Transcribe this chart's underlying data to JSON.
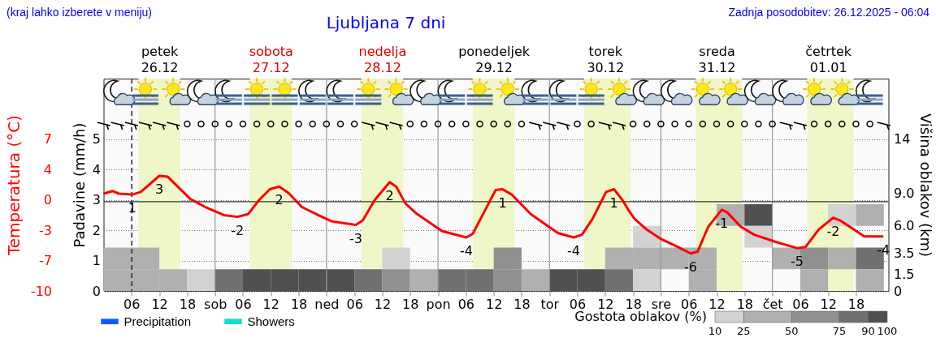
{
  "chart_data": {
    "type": "line",
    "title": "Ljubljana 7 dni",
    "annotations": [
      "(kraj lahko izberete v meniju)",
      "Zadnja posodobitev: 26.12.2025 - 06:04",
      {
        "text": "1",
        "x": "2025-12-26T06:12",
        "y": 0.8
      },
      {
        "text": "3",
        "x": "2025-12-26T12:00",
        "y": 2.9
      },
      {
        "text": "-2",
        "x": "2025-12-27T04:48",
        "y": -1.7
      },
      {
        "text": "2",
        "x": "2025-12-27T13:48",
        "y": 1.7
      },
      {
        "text": "-3",
        "x": "2025-12-28T06:18",
        "y": -2.6
      },
      {
        "text": "2",
        "x": "2025-12-28T13:36",
        "y": 2.2
      },
      {
        "text": "-4",
        "x": "2025-12-29T06:06",
        "y": -4.0
      },
      {
        "text": "1",
        "x": "2025-12-29T13:54",
        "y": 1.4
      },
      {
        "text": "-4",
        "x": "2025-12-30T05:12",
        "y": -4.0
      },
      {
        "text": "1",
        "x": "2025-12-30T13:54",
        "y": 1.4
      },
      {
        "text": "-6",
        "x": "2025-12-31T06:24",
        "y": -5.8
      },
      {
        "text": "-1",
        "x": "2025-12-31T13:06",
        "y": -0.9
      },
      {
        "text": "-5",
        "x": "2026-01-01T05:18",
        "y": -5.2
      },
      {
        "text": "-2",
        "x": "2026-01-01T13:06",
        "y": -1.8
      },
      {
        "text": "-4",
        "x": "2026-01-01T23:54",
        "y": -3.9
      }
    ],
    "ylabel": "Temperatura (°C)",
    "y2label": "Padavine (mm/h)",
    "y3label": "Višina oblakov (km)",
    "clabel": "Gostota oblakov (%)",
    "xlim": [
      "2025-12-26T00:00",
      "2026-01-02T01:00"
    ],
    "xticks": [
      {
        "value": "2025-12-26T06:00",
        "label": "06"
      },
      {
        "value": "2025-12-26T12:00",
        "label": "12"
      },
      {
        "value": "2025-12-26T18:00",
        "label": "18"
      },
      {
        "value": "2025-12-27T00:00",
        "label": "sob"
      },
      {
        "value": "2025-12-27T06:00",
        "label": "06"
      },
      {
        "value": "2025-12-27T12:00",
        "label": "12"
      },
      {
        "value": "2025-12-27T18:00",
        "label": "18"
      },
      {
        "value": "2025-12-28T00:00",
        "label": "ned"
      },
      {
        "value": "2025-12-28T06:00",
        "label": "06"
      },
      {
        "value": "2025-12-28T12:00",
        "label": "12"
      },
      {
        "value": "2025-12-28T18:00",
        "label": "18"
      },
      {
        "value": "2025-12-29T00:00",
        "label": "pon"
      },
      {
        "value": "2025-12-29T06:00",
        "label": "06"
      },
      {
        "value": "2025-12-29T12:00",
        "label": "12"
      },
      {
        "value": "2025-12-29T18:00",
        "label": "18"
      },
      {
        "value": "2025-12-30T00:00",
        "label": "tor"
      },
      {
        "value": "2025-12-30T06:00",
        "label": "06"
      },
      {
        "value": "2025-12-30T12:00",
        "label": "12"
      },
      {
        "value": "2025-12-30T18:00",
        "label": "18"
      },
      {
        "value": "2025-12-31T00:00",
        "label": "sre"
      },
      {
        "value": "2025-12-31T06:00",
        "label": "06"
      },
      {
        "value": "2025-12-31T12:00",
        "label": "12"
      },
      {
        "value": "2025-12-31T18:00",
        "label": "18"
      },
      {
        "value": "2026-01-01T00:00",
        "label": "čet"
      },
      {
        "value": "2026-01-01T06:00",
        "label": "06"
      },
      {
        "value": "2026-01-01T12:00",
        "label": "12"
      },
      {
        "value": "2026-01-01T18:00",
        "label": "18"
      }
    ],
    "x2lim": [
      "2025-12-26T00:00",
      "2026-01-02T01:00"
    ],
    "x2ticks": [
      {
        "value": "2025-12-26T12:00",
        "label": "petek\n26.12"
      },
      {
        "value": "2025-12-27T12:00",
        "label": "sobota\n27.12"
      },
      {
        "value": "2025-12-28T12:00",
        "label": "nedelja\n28.12"
      },
      {
        "value": "2025-12-29T12:00",
        "label": "ponedeljek\n29.12"
      },
      {
        "value": "2025-12-30T12:00",
        "label": "torek\n30.12"
      },
      {
        "value": "2025-12-31T12:00",
        "label": "sreda\n31.12"
      },
      {
        "value": "2026-01-01T12:00",
        "label": "četrtek\n01.01"
      }
    ],
    "ylim": [
      -10,
      13.8
    ],
    "yticks": [
      {
        "value": -10,
        "label": "-10"
      },
      {
        "value": -6.6,
        "label": "-7"
      },
      {
        "value": -3.2,
        "label": "-3"
      },
      {
        "value": 0.2,
        "label": "0"
      },
      {
        "value": 3.6,
        "label": "4"
      },
      {
        "value": 7,
        "label": "7"
      }
    ],
    "y2lim": [
      0,
      7
    ],
    "y2ticks": [
      0,
      1,
      2,
      3,
      4,
      5
    ],
    "y3lim": [
      0,
      19.6
    ],
    "y3ticks": [
      0,
      1.5,
      3.5,
      {
        "value": 6,
        "label": "6.0"
      },
      {
        "value": 9,
        "label": "9.0"
      },
      14
    ],
    "clim": [
      10,
      100
    ],
    "cticks": [
      10,
      25,
      50,
      75,
      90,
      100
    ],
    "grid": "y",
    "legend": "bottom left",
    "bands": [
      {
        "axis": "x",
        "from": "2025-12-26T07:30",
        "to": "2025-12-26T16:30",
        "color": "#eff6c8"
      },
      {
        "axis": "x",
        "from": "2025-12-27T07:30",
        "to": "2025-12-27T16:30",
        "color": "#eff6c8"
      },
      {
        "axis": "x",
        "from": "2025-12-28T07:30",
        "to": "2025-12-28T16:30",
        "color": "#eff6c8"
      },
      {
        "axis": "x",
        "from": "2025-12-29T07:30",
        "to": "2025-12-29T16:30",
        "color": "#eff6c8"
      },
      {
        "axis": "x",
        "from": "2025-12-30T07:30",
        "to": "2025-12-30T17:30",
        "color": "#eff6c8"
      },
      {
        "axis": "x",
        "from": "2025-12-31T07:30",
        "to": "2025-12-31T17:30",
        "color": "#eff6c8"
      },
      {
        "axis": "x",
        "from": "2026-01-01T07:30",
        "to": "2026-01-01T17:30",
        "color": "#eff6c8"
      }
    ],
    "ref_lines": [
      {
        "axis": "x",
        "value": "2025-12-27T00:00",
        "color": "#999999"
      },
      {
        "axis": "x",
        "value": "2025-12-28T00:00",
        "color": "#999999"
      },
      {
        "axis": "x",
        "value": "2025-12-29T00:00",
        "color": "#999999"
      },
      {
        "axis": "x",
        "value": "2025-12-30T00:00",
        "color": "#999999"
      },
      {
        "axis": "x",
        "value": "2025-12-31T00:00",
        "color": "#999999"
      },
      {
        "axis": "x",
        "value": "2026-01-01T00:00",
        "color": "#999999"
      },
      {
        "axis": "x",
        "value": "2025-12-26T06:04",
        "color": "#333333",
        "line_style": "dashed"
      },
      {
        "axis": "y",
        "value": 0,
        "color": "#333333"
      }
    ],
    "series": [
      {
        "type": "scatter",
        "axis": "y3",
        "marker": "square",
        "x": [
          "2025-12-31T15:00",
          "2025-12-31T21:00",
          "2026-01-01T15:00",
          "2026-01-01T21:00",
          "2025-12-30T21:00",
          "2025-12-31T21:00",
          "2025-12-26T03:00",
          "2025-12-26T09:00",
          "2025-12-28T15:00",
          "2025-12-29T15:00",
          "2025-12-30T15:00",
          "2025-12-30T21:00",
          "2025-12-31T03:00",
          "2025-12-31T09:00",
          "2026-01-01T03:00",
          "2026-01-01T09:00",
          "2026-01-01T15:00",
          "2026-01-01T21:00",
          "2025-12-26T03:00",
          "2025-12-26T09:00",
          "2025-12-26T15:00",
          "2025-12-26T21:00",
          "2025-12-27T03:00",
          "2025-12-27T09:00",
          "2025-12-27T15:00",
          "2025-12-27T21:00",
          "2025-12-28T03:00",
          "2025-12-28T09:00",
          "2025-12-28T15:00",
          "2025-12-28T21:00",
          "2025-12-29T03:00",
          "2025-12-29T09:00",
          "2025-12-29T15:00",
          "2025-12-29T21:00",
          "2025-12-30T03:00",
          "2025-12-30T09:00",
          "2025-12-30T15:00",
          "2025-12-30T21:00",
          "2025-12-31T09:00",
          "2026-01-01T09:00",
          "2026-01-01T21:00"
        ],
        "values": [
          7,
          7,
          7,
          7,
          5,
          5,
          3,
          3,
          3,
          3,
          3,
          3,
          3,
          3,
          3,
          3,
          3,
          3,
          1,
          1,
          1,
          1,
          1,
          1,
          1,
          1,
          1,
          1,
          1,
          1,
          1,
          1,
          1,
          1,
          1,
          1,
          1,
          1,
          1,
          1,
          1
        ],
        "colors": [
          "#b0b0b0",
          "#505050",
          "#d2d2d2",
          "#b0b0b0",
          "#d2d2d2",
          "#d2d2d2",
          "#b0b0b0",
          "#b0b0b0",
          "#d2d2d2",
          "#909090",
          "#b0b0b0",
          "#b0b0b0",
          "#b0b0b0",
          "#b0b0b0",
          "#b0b0b0",
          "#909090",
          "#b0b0b0",
          "#707070",
          "#b0b0b0",
          "#b0b0b0",
          "#b0b0b0",
          "#d2d2d2",
          "#707070",
          "#505050",
          "#505050",
          "#505050",
          "#505050",
          "#707070",
          "#909090",
          "#b0b0b0",
          "#707070",
          "#707070",
          "#909090",
          "#b0b0b0",
          "#505050",
          "#505050",
          "#707070",
          "#d2d2d2",
          "#b0b0b0",
          "#b0b0b0",
          "#b0b0b0"
        ]
      },
      {
        "type": "bar",
        "axis": "y2",
        "name": "Precipitation",
        "color": "#0a5cff",
        "x": [
          "2025-12-26T03:00",
          "2025-12-26T09:00",
          "2025-12-26T15:00",
          "2025-12-26T21:00",
          "2025-12-27T03:00",
          "2025-12-27T09:00",
          "2025-12-27T15:00",
          "2025-12-27T21:00",
          "2025-12-28T03:00",
          "2025-12-28T09:00",
          "2025-12-28T15:00",
          "2025-12-28T21:00",
          "2025-12-29T03:00",
          "2025-12-29T09:00",
          "2025-12-29T15:00",
          "2025-12-29T21:00",
          "2025-12-30T03:00",
          "2025-12-30T09:00",
          "2025-12-30T15:00",
          "2025-12-30T21:00",
          "2025-12-31T03:00",
          "2025-12-31T09:00",
          "2025-12-31T15:00",
          "2025-12-31T21:00",
          "2026-01-01T03:00",
          "2026-01-01T09:00",
          "2026-01-01T15:00",
          "2026-01-01T21:00"
        ],
        "values": [
          0,
          0,
          0,
          0,
          0,
          0,
          0,
          0,
          0,
          0,
          0,
          0,
          0,
          0,
          0,
          0,
          0,
          0,
          0,
          0,
          0,
          0,
          0,
          0,
          0,
          0,
          0,
          0
        ]
      },
      {
        "type": "bar",
        "axis": "y2",
        "name": "Showers",
        "color": "#11dccc",
        "x": [
          "2025-12-26T03:00",
          "2025-12-26T09:00",
          "2025-12-26T15:00",
          "2025-12-26T21:00",
          "2025-12-27T03:00",
          "2025-12-27T09:00",
          "2025-12-27T15:00",
          "2025-12-27T21:00",
          "2025-12-28T03:00",
          "2025-12-28T09:00",
          "2025-12-28T15:00",
          "2025-12-28T21:00",
          "2025-12-29T03:00",
          "2025-12-29T09:00",
          "2025-12-29T15:00",
          "2025-12-29T21:00",
          "2025-12-30T03:00",
          "2025-12-30T09:00",
          "2025-12-30T15:00",
          "2025-12-30T21:00",
          "2025-12-31T03:00",
          "2025-12-31T09:00",
          "2025-12-31T15:00",
          "2025-12-31T21:00",
          "2026-01-01T03:00",
          "2026-01-01T09:00",
          "2026-01-01T15:00",
          "2026-01-01T21:00"
        ],
        "values": [
          0,
          0,
          0,
          0,
          0,
          0,
          0,
          0,
          0,
          0,
          0,
          0,
          0,
          0,
          0,
          0,
          0,
          0,
          0,
          0,
          0,
          0,
          0,
          0,
          0,
          0,
          0,
          0
        ]
      },
      {
        "color": "#ff0000",
        "x": [
          "2025-12-26T00:00",
          "2025-12-26T01:54",
          "2025-12-26T03:18",
          "2025-12-26T06:12",
          "2025-12-26T08:00",
          "2025-12-26T12:00",
          "2025-12-26T13:48",
          "2025-12-26T18:42",
          "2025-12-26T21:54",
          "2025-12-27T01:54",
          "2025-12-27T04:48",
          "2025-12-27T07:06",
          "2025-12-27T09:30",
          "2025-12-27T11:48",
          "2025-12-27T13:48",
          "2025-12-27T15:48",
          "2025-12-27T18:42",
          "2025-12-27T22:12",
          "2025-12-28T01:06",
          "2025-12-28T06:18",
          "2025-12-28T07:48",
          "2025-12-28T10:24",
          "2025-12-28T13:36",
          "2025-12-28T15:00",
          "2025-12-28T17:00",
          "2025-12-28T19:18",
          "2025-12-29T00:54",
          "2025-12-29T06:06",
          "2025-12-29T07:30",
          "2025-12-29T10:06",
          "2025-12-29T12:24",
          "2025-12-29T13:54",
          "2025-12-29T15:54",
          "2025-12-29T20:00",
          "2025-12-30T01:48",
          "2025-12-30T05:12",
          "2025-12-30T07:00",
          "2025-12-30T09:18",
          "2025-12-30T12:12",
          "2025-12-30T13:54",
          "2025-12-30T15:42",
          "2025-12-30T17:06",
          "2025-12-30T18:18",
          "2025-12-30T20:54",
          "2025-12-31T00:06",
          "2025-12-31T03:48",
          "2025-12-31T06:24",
          "2025-12-31T07:54",
          "2025-12-31T10:12",
          "2025-12-31T13:06",
          "2025-12-31T14:18",
          "2025-12-31T17:12",
          "2025-12-31T20:06",
          "2026-01-01T00:42",
          "2026-01-01T05:18",
          "2026-01-01T07:06",
          "2026-01-01T10:00",
          "2026-01-01T13:06",
          "2026-01-01T14:36",
          "2026-01-01T19:48",
          "2026-01-01T23:54"
        ],
        "values": [
          0.9,
          1.2,
          0.9,
          0.8,
          1.1,
          2.9,
          2.8,
          0.3,
          -0.6,
          -1.5,
          -1.7,
          -1.4,
          0.2,
          1.4,
          1.7,
          1.0,
          -0.6,
          -1.5,
          -2.2,
          -2.6,
          -2.1,
          0.2,
          2.2,
          1.7,
          -0.2,
          -1.3,
          -3.3,
          -4.0,
          -3.6,
          -1.0,
          1.3,
          1.4,
          0.8,
          -1.4,
          -3.5,
          -4.0,
          -3.7,
          -1.9,
          1.1,
          1.4,
          0.2,
          -1.0,
          -1.9,
          -3.1,
          -4.2,
          -5.1,
          -5.8,
          -5.6,
          -2.8,
          -0.9,
          -1.2,
          -2.8,
          -3.7,
          -4.5,
          -5.2,
          -5.1,
          -3.1,
          -1.8,
          -2.1,
          -3.9,
          -3.9
        ]
      }
    ]
  }
}
